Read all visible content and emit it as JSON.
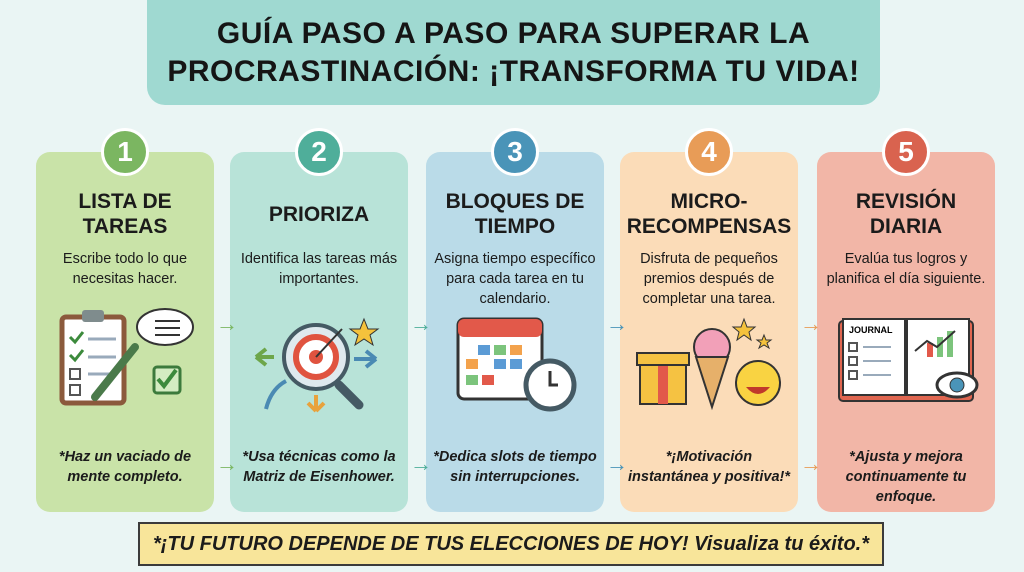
{
  "title": "GUÍA PASO A PASO PARA SUPERAR LA PROCRASTINACIÓN: ¡TRANSFORMA TU VIDA!",
  "steps": [
    {
      "number": "1",
      "title": "LISTA DE TAREAS",
      "description": "Escribe todo lo que necesitas hacer.",
      "note": "*Haz un vaciado de mente completo.",
      "icon": "clipboard-checklist-icon",
      "color": "#c9e3a8",
      "accent": "#7bb661"
    },
    {
      "number": "2",
      "title": "PRIORIZA",
      "description": "Identifica las tareas más importantes.",
      "note": "*Usa técnicas como la Matriz de Eisenhower.",
      "icon": "target-magnifier-icon",
      "color": "#b8e3d8",
      "accent": "#4fae9a"
    },
    {
      "number": "3",
      "title": "BLOQUES DE TIEMPO",
      "description": "Asigna tiempo específico para cada tarea en tu calendario.",
      "note": "*Dedica slots de tiempo sin interrupciones.",
      "icon": "calendar-clock-icon",
      "color": "#badbe8",
      "accent": "#4a94b8"
    },
    {
      "number": "4",
      "title": "MICRO-RECOMPENSAS",
      "description": "Disfruta de pequeños premios después de completar una tarea.",
      "note": "*¡Motivación instantánea y positiva!*",
      "icon": "gift-icecream-smiley-icon",
      "color": "#fbdcb8",
      "accent": "#e89c57"
    },
    {
      "number": "5",
      "title": "REVISIÓN DIARIA",
      "description": "Evalúa tus logros y planifica el día siguiente.",
      "note": "*Ajusta y mejora continuamente tu enfoque.",
      "icon": "journal-eye-icon",
      "color": "#f2b6a7",
      "accent": "#d9634f",
      "journal_label": "JOURNAL"
    }
  ],
  "footer": "*¡TU FUTURO DEPENDE DE TUS ELECCIONES DE HOY! Visualiza tu éxito.*"
}
